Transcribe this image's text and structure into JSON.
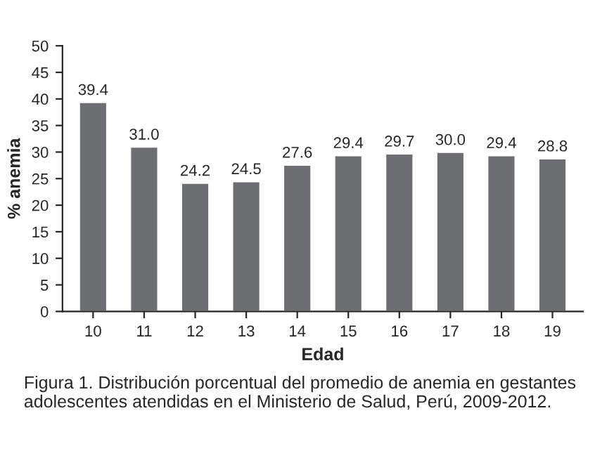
{
  "chart_data": {
    "type": "bar",
    "xlabel": "Edad",
    "ylabel": "% anemia",
    "categories": [
      "10",
      "11",
      "12",
      "13",
      "14",
      "15",
      "16",
      "17",
      "18",
      "19"
    ],
    "values": [
      39.4,
      31.0,
      24.2,
      24.5,
      27.6,
      29.4,
      29.7,
      30.0,
      29.4,
      28.8
    ],
    "value_labels": [
      "39.4",
      "31.0",
      "24.2",
      "24.5",
      "27.6",
      "29.4",
      "29.7",
      "30.0",
      "29.4",
      "28.8"
    ],
    "color": "#6d6e71",
    "ylim": [
      0,
      50
    ],
    "yticks": [
      0,
      5,
      10,
      15,
      20,
      25,
      30,
      35,
      40,
      45,
      50
    ],
    "grid": false,
    "annotations": [
      "Figura 1. Distribución porcentual del promedio de anemia en gestantes adolescentes atendidas en el Ministerio de Salud, Perú, 2009-2012."
    ]
  }
}
